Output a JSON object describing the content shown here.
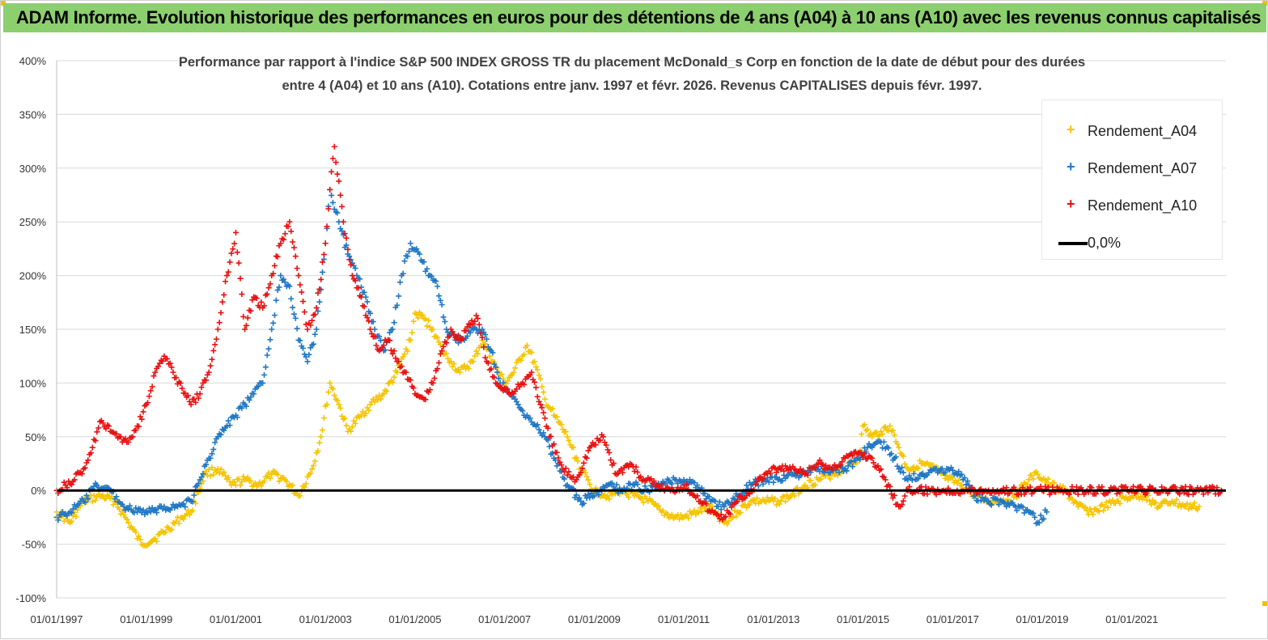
{
  "banner": {
    "title": "ADAM Informe. Evolution historique des performances en euros pour des détentions de 4 ans (A04) à 10 ans (A10) avec les revenus connus capitalisés"
  },
  "chart_data": {
    "type": "scatter",
    "title_line1": "Performance par rapport à l'indice S&P 500 INDEX GROSS TR  du placement McDonald_s Corp en fonction de la date de début pour des durées",
    "title_line2": "entre 4 (A04) et 10 ans (A10). Cotations entre janv. 1997 et févr. 2026. Revenus CAPITALISES depuis févr. 1997.",
    "xlabel": "",
    "ylabel": "",
    "x_tick_labels": [
      "01/01/1997",
      "01/01/1999",
      "01/01/2001",
      "01/01/2003",
      "01/01/2005",
      "01/01/2007",
      "01/01/2009",
      "01/01/2011",
      "01/01/2013",
      "01/01/2015",
      "01/01/2017",
      "01/01/2019",
      "01/01/2021"
    ],
    "x_tick_years": [
      1997,
      1999,
      2001,
      2003,
      2005,
      2007,
      2009,
      2011,
      2013,
      2015,
      2017,
      2019,
      2021
    ],
    "xlim": [
      1997,
      2023.1
    ],
    "y_tick_labels": [
      "400%",
      "350%",
      "300%",
      "250%",
      "200%",
      "150%",
      "100%",
      "50%",
      "0%",
      "-50%",
      "-100%"
    ],
    "y_tick_values": [
      400,
      350,
      300,
      250,
      200,
      150,
      100,
      50,
      0,
      -50,
      -100
    ],
    "ylim": [
      -100,
      400
    ],
    "grid": "horizontal",
    "legend_position": "top-right",
    "legend": [
      "Rendement_A04",
      "Rendement_A07",
      "Rendement_A10",
      "0,0%"
    ],
    "series": [
      {
        "name": "Rendement_A04",
        "color": "#f5c400",
        "marker": "plus",
        "x": [
          1997.0,
          1997.3,
          1997.6,
          1998.0,
          1998.3,
          1998.6,
          1998.9,
          1999.2,
          1999.5,
          1999.8,
          2000.0,
          2000.3,
          2000.6,
          2000.9,
          2001.2,
          2001.5,
          2001.8,
          2002.1,
          2002.4,
          2002.7,
          2002.9,
          2003.1,
          2003.3,
          2003.5,
          2003.8,
          2004.0,
          2004.3,
          2004.6,
          2004.9,
          2005.0,
          2005.2,
          2005.4,
          2005.6,
          2005.8,
          2006.0,
          2006.3,
          2006.5,
          2006.8,
          2007.0,
          2007.2,
          2007.5,
          2007.7,
          2007.9,
          2008.1,
          2008.4,
          2008.7,
          2009.0,
          2009.3,
          2009.6,
          2009.9,
          2010.2,
          2010.5,
          2010.8,
          2011.0,
          2011.3,
          2011.6,
          2011.9,
          2012.2,
          2012.5,
          2012.8,
          2013.1,
          2013.4,
          2013.7,
          2014.0,
          2014.3,
          2014.6,
          2014.9,
          2015.0,
          2015.2,
          2015.4,
          2015.6,
          2015.8,
          2016.0,
          2016.3,
          2016.6,
          2016.9,
          2017.2,
          2017.5,
          2017.8,
          2018.1,
          2018.4,
          2018.7,
          2018.9,
          2019.2,
          2019.5,
          2019.8,
          2020.1,
          2020.4,
          2020.7,
          2021.0,
          2021.3,
          2021.6,
          2021.9,
          2022.2,
          2022.5
        ],
        "y": [
          -20,
          -30,
          -10,
          -5,
          -10,
          -30,
          -50,
          -45,
          -35,
          -25,
          -20,
          15,
          20,
          5,
          10,
          5,
          15,
          10,
          -5,
          20,
          50,
          100,
          80,
          55,
          70,
          80,
          90,
          110,
          140,
          165,
          160,
          150,
          130,
          120,
          110,
          120,
          140,
          115,
          100,
          110,
          135,
          115,
          85,
          70,
          50,
          20,
          0,
          -5,
          0,
          -5,
          -10,
          -20,
          -25,
          -25,
          -20,
          -15,
          -30,
          -20,
          -10,
          -10,
          -10,
          -5,
          5,
          10,
          15,
          20,
          30,
          60,
          50,
          55,
          60,
          40,
          20,
          25,
          20,
          10,
          5,
          -5,
          -10,
          -10,
          -5,
          10,
          15,
          5,
          0,
          -15,
          -20,
          -15,
          -10,
          -5,
          -5,
          -15,
          -10,
          -15,
          -15
        ]
      },
      {
        "name": "Rendement_A07",
        "color": "#1f77c4",
        "marker": "plus",
        "x": [
          1997.0,
          1997.3,
          1997.6,
          1997.9,
          1998.2,
          1998.5,
          1998.8,
          1999.1,
          1999.4,
          1999.7,
          2000.0,
          2000.2,
          2000.4,
          2000.6,
          2000.8,
          2001.0,
          2001.2,
          2001.4,
          2001.6,
          2001.8,
          2002.0,
          2002.2,
          2002.4,
          2002.6,
          2002.8,
          2003.0,
          2003.1,
          2003.3,
          2003.5,
          2003.7,
          2003.9,
          2004.1,
          2004.3,
          2004.5,
          2004.7,
          2004.9,
          2005.1,
          2005.3,
          2005.5,
          2005.7,
          2005.9,
          2006.1,
          2006.3,
          2006.5,
          2006.7,
          2006.9,
          2007.1,
          2007.3,
          2007.5,
          2007.7,
          2007.9,
          2008.1,
          2008.4,
          2008.7,
          2009.0,
          2009.3,
          2009.6,
          2009.9,
          2010.2,
          2010.5,
          2010.8,
          2011.0,
          2011.3,
          2011.6,
          2011.9,
          2012.2,
          2012.5,
          2012.8,
          2013.1,
          2013.4,
          2013.7,
          2014.0,
          2014.3,
          2014.6,
          2014.9,
          2015.1,
          2015.4,
          2015.7,
          2016.0,
          2016.3,
          2016.6,
          2016.9,
          2017.2,
          2017.5,
          2017.8,
          2018.1,
          2018.4,
          2018.7,
          2018.9,
          2019.1
        ],
        "y": [
          -25,
          -20,
          -10,
          5,
          0,
          -15,
          -20,
          -20,
          -15,
          -15,
          -10,
          10,
          30,
          50,
          60,
          70,
          80,
          90,
          100,
          150,
          200,
          190,
          140,
          120,
          150,
          230,
          280,
          250,
          220,
          200,
          180,
          150,
          130,
          150,
          200,
          230,
          220,
          200,
          190,
          150,
          140,
          140,
          150,
          150,
          130,
          100,
          90,
          80,
          70,
          60,
          50,
          30,
          5,
          -10,
          -5,
          5,
          0,
          5,
          0,
          5,
          10,
          10,
          5,
          -10,
          -15,
          -5,
          5,
          10,
          10,
          15,
          15,
          20,
          20,
          20,
          30,
          40,
          45,
          30,
          10,
          15,
          20,
          20,
          15,
          -5,
          -10,
          -10,
          -15,
          -20,
          -30,
          -20
        ]
      },
      {
        "name": "Rendement_A10",
        "color": "#e81010",
        "marker": "plus",
        "x": [
          1997.0,
          1997.2,
          1997.4,
          1997.6,
          1997.8,
          1998.0,
          1998.2,
          1998.4,
          1998.6,
          1998.8,
          1999.0,
          1999.2,
          1999.4,
          1999.6,
          1999.8,
          2000.0,
          2000.2,
          2000.4,
          2000.6,
          2000.8,
          2001.0,
          2001.2,
          2001.4,
          2001.6,
          2001.8,
          2002.0,
          2002.2,
          2002.4,
          2002.6,
          2002.8,
          2003.0,
          2003.1,
          2003.2,
          2003.4,
          2003.6,
          2003.8,
          2004.0,
          2004.2,
          2004.4,
          2004.6,
          2004.8,
          2005.0,
          2005.2,
          2005.4,
          2005.6,
          2005.8,
          2006.0,
          2006.2,
          2006.4,
          2006.6,
          2006.8,
          2007.0,
          2007.2,
          2007.4,
          2007.6,
          2007.8,
          2008.0,
          2008.3,
          2008.6,
          2008.9,
          2009.2,
          2009.5,
          2009.8,
          2010.1,
          2010.4,
          2010.7,
          2011.0,
          2011.3,
          2011.6,
          2011.9,
          2012.2,
          2012.5,
          2012.8,
          2013.1,
          2013.4,
          2013.7,
          2014.0,
          2014.3,
          2014.6,
          2014.9,
          2015.2,
          2015.5,
          2015.8,
          2016.0,
          2016.2,
          2016.5,
          2016.8,
          2017.1,
          2017.5,
          2018.0,
          2018.5,
          2019.0,
          2019.5,
          2020.0,
          2020.5,
          2021.0,
          2021.5,
          2022.0,
          2022.5,
          2023.0
        ],
        "y": [
          0,
          5,
          10,
          20,
          40,
          65,
          55,
          50,
          45,
          60,
          80,
          110,
          125,
          110,
          95,
          80,
          90,
          110,
          150,
          200,
          240,
          150,
          180,
          170,
          200,
          230,
          250,
          200,
          150,
          170,
          230,
          280,
          320,
          250,
          200,
          180,
          150,
          130,
          140,
          120,
          110,
          90,
          85,
          100,
          130,
          150,
          140,
          155,
          160,
          120,
          100,
          95,
          90,
          100,
          110,
          80,
          50,
          20,
          10,
          40,
          50,
          15,
          25,
          10,
          5,
          0,
          5,
          -5,
          -20,
          -25,
          -10,
          0,
          15,
          20,
          20,
          15,
          25,
          20,
          30,
          35,
          30,
          10,
          -15,
          0,
          0,
          0,
          0,
          0,
          0,
          0,
          0,
          0,
          0,
          0,
          0,
          0,
          0,
          0,
          0,
          0
        ]
      },
      {
        "name": "0,0%",
        "color": "#000000",
        "marker": "line",
        "x": [
          1997.0,
          2023.1
        ],
        "y": [
          0,
          0
        ]
      }
    ]
  }
}
